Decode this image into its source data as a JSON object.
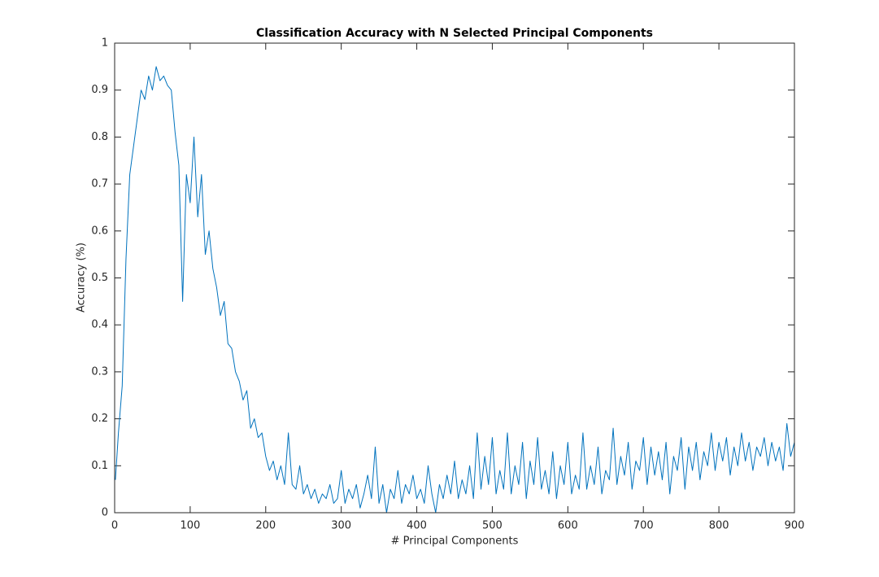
{
  "chart_data": {
    "type": "line",
    "title": "Classification Accuracy with N Selected Principal Components",
    "xlabel": "# Principal Components",
    "ylabel": "Accuracy (%)",
    "color": "#0072bd",
    "xlim": [
      0,
      900
    ],
    "ylim": [
      0,
      1
    ],
    "xticks": [
      0,
      100,
      200,
      300,
      400,
      500,
      600,
      700,
      800,
      900
    ],
    "yticks": [
      0,
      0.1,
      0.2,
      0.3,
      0.4,
      0.5,
      0.6,
      0.7,
      0.8,
      0.9,
      1
    ],
    "x": [
      1,
      5,
      10,
      15,
      20,
      25,
      30,
      35,
      40,
      45,
      50,
      55,
      60,
      65,
      70,
      75,
      80,
      85,
      90,
      95,
      100,
      105,
      110,
      115,
      120,
      125,
      130,
      135,
      140,
      145,
      150,
      155,
      160,
      165,
      170,
      175,
      180,
      185,
      190,
      195,
      200,
      205,
      210,
      215,
      220,
      225,
      230,
      235,
      240,
      245,
      250,
      255,
      260,
      265,
      270,
      275,
      280,
      285,
      290,
      295,
      300,
      305,
      310,
      315,
      320,
      325,
      330,
      335,
      340,
      345,
      350,
      355,
      360,
      365,
      370,
      375,
      380,
      385,
      390,
      395,
      400,
      405,
      410,
      415,
      420,
      425,
      430,
      435,
      440,
      445,
      450,
      455,
      460,
      465,
      470,
      475,
      480,
      485,
      490,
      495,
      500,
      505,
      510,
      515,
      520,
      525,
      530,
      535,
      540,
      545,
      550,
      555,
      560,
      565,
      570,
      575,
      580,
      585,
      590,
      595,
      600,
      605,
      610,
      615,
      620,
      625,
      630,
      635,
      640,
      645,
      650,
      655,
      660,
      665,
      670,
      675,
      680,
      685,
      690,
      695,
      700,
      705,
      710,
      715,
      720,
      725,
      730,
      735,
      740,
      745,
      750,
      755,
      760,
      765,
      770,
      775,
      780,
      785,
      790,
      795,
      800,
      805,
      810,
      815,
      820,
      825,
      830,
      835,
      840,
      845,
      850,
      855,
      860,
      865,
      870,
      875,
      880,
      885,
      890,
      895,
      900
    ],
    "values": [
      0.07,
      0.17,
      0.27,
      0.54,
      0.72,
      0.78,
      0.84,
      0.9,
      0.88,
      0.93,
      0.9,
      0.95,
      0.92,
      0.93,
      0.91,
      0.9,
      0.81,
      0.74,
      0.45,
      0.72,
      0.66,
      0.8,
      0.63,
      0.72,
      0.55,
      0.6,
      0.52,
      0.48,
      0.42,
      0.45,
      0.36,
      0.35,
      0.3,
      0.28,
      0.24,
      0.26,
      0.18,
      0.2,
      0.16,
      0.17,
      0.12,
      0.09,
      0.11,
      0.07,
      0.1,
      0.06,
      0.17,
      0.06,
      0.05,
      0.1,
      0.04,
      0.06,
      0.03,
      0.05,
      0.02,
      0.04,
      0.03,
      0.06,
      0.02,
      0.03,
      0.09,
      0.02,
      0.05,
      0.03,
      0.06,
      0.01,
      0.04,
      0.08,
      0.03,
      0.14,
      0.02,
      0.06,
      0.0,
      0.05,
      0.03,
      0.09,
      0.02,
      0.06,
      0.04,
      0.08,
      0.03,
      0.05,
      0.02,
      0.1,
      0.04,
      0.0,
      0.06,
      0.03,
      0.08,
      0.04,
      0.11,
      0.03,
      0.07,
      0.04,
      0.1,
      0.03,
      0.17,
      0.05,
      0.12,
      0.06,
      0.16,
      0.04,
      0.09,
      0.05,
      0.17,
      0.04,
      0.1,
      0.06,
      0.15,
      0.03,
      0.11,
      0.06,
      0.16,
      0.05,
      0.09,
      0.04,
      0.13,
      0.03,
      0.1,
      0.06,
      0.15,
      0.04,
      0.08,
      0.05,
      0.17,
      0.05,
      0.1,
      0.06,
      0.14,
      0.04,
      0.09,
      0.07,
      0.18,
      0.06,
      0.12,
      0.08,
      0.15,
      0.05,
      0.11,
      0.09,
      0.16,
      0.06,
      0.14,
      0.08,
      0.13,
      0.07,
      0.15,
      0.04,
      0.12,
      0.09,
      0.16,
      0.05,
      0.14,
      0.09,
      0.15,
      0.07,
      0.13,
      0.1,
      0.17,
      0.09,
      0.15,
      0.11,
      0.16,
      0.08,
      0.14,
      0.1,
      0.17,
      0.11,
      0.15,
      0.09,
      0.14,
      0.12,
      0.16,
      0.1,
      0.15,
      0.11,
      0.14,
      0.09,
      0.19,
      0.12,
      0.15
    ]
  }
}
